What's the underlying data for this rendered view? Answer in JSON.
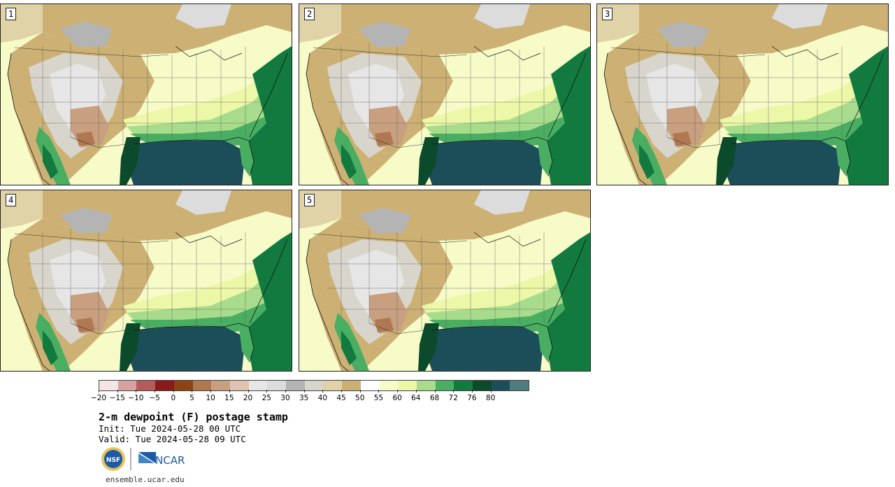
{
  "panels": [
    {
      "label": "1"
    },
    {
      "label": "2"
    },
    {
      "label": "3"
    },
    {
      "label": "4"
    },
    {
      "label": "5"
    }
  ],
  "colorbar": {
    "colors": [
      "#f5e6e6",
      "#d6a2a2",
      "#b45c5c",
      "#8b1a1a",
      "#8b4513",
      "#b07850",
      "#c8a080",
      "#e0c4b0",
      "#e6e6e6",
      "#dcdcdc",
      "#b4b4b4",
      "#d8d6cc",
      "#e0d3a8",
      "#cdb174",
      "#ffffff",
      "#f7fbc8",
      "#ecf7a8",
      "#a8dc8c",
      "#4aae62",
      "#127a3e",
      "#0c4a2c",
      "#1c4e5a",
      "#4e7c80"
    ],
    "tick_labels": [
      "−20",
      "−15",
      "−10",
      "−5",
      "0",
      "5",
      "10",
      "15",
      "20",
      "25",
      "30",
      "35",
      "40",
      "45",
      "50",
      "55",
      "60",
      "64",
      "68",
      "72",
      "76",
      "80"
    ]
  },
  "title": "2-m dewpoint (F) postage stamp",
  "init": "Init: Tue 2024-05-28 00 UTC",
  "valid": "Valid: Tue 2024-05-28 09 UTC",
  "logos": {
    "nsf": "NSF",
    "ncar": "NCAR"
  },
  "url": "ensemble.ucar.edu"
}
